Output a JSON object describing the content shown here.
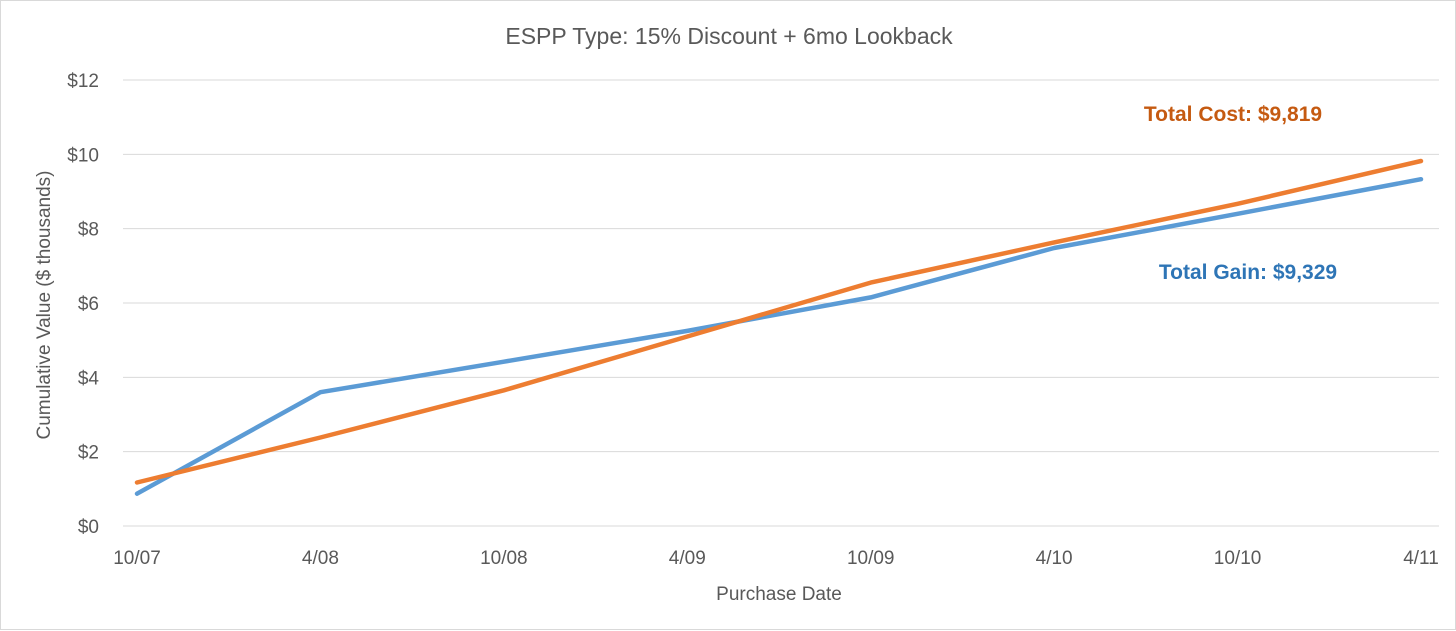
{
  "chart_data": {
    "type": "line",
    "title": "ESPP Type: 15% Discount + 6mo Lookback",
    "xlabel": "Purchase Date",
    "ylabel": "Cumulative Value ($ thousands)",
    "categories": [
      "10/07",
      "4/08",
      "10/08",
      "4/09",
      "10/09",
      "4/10",
      "10/10",
      "4/11"
    ],
    "ylim": [
      0,
      12
    ],
    "yticks": [
      0,
      2,
      4,
      6,
      8,
      10,
      12
    ],
    "ytick_labels": [
      "$0",
      "$2",
      "$4",
      "$6",
      "$8",
      "$10",
      "$12"
    ],
    "grid": true,
    "series": [
      {
        "key": "gain",
        "values": [
          0.87,
          3.6,
          4.42,
          5.25,
          6.15,
          7.48,
          8.4,
          9.33
        ],
        "color": "#5b9bd5"
      },
      {
        "key": "cost",
        "values": [
          1.17,
          2.38,
          3.65,
          5.1,
          6.55,
          7.63,
          8.67,
          9.82
        ],
        "color": "#ed7d31"
      }
    ],
    "annotations": {
      "cost": {
        "text": "Total Cost: $9,819",
        "color": "#c55a11"
      },
      "gain": {
        "text": "Total Gain: $9,329",
        "color": "#2e75b6"
      }
    }
  }
}
